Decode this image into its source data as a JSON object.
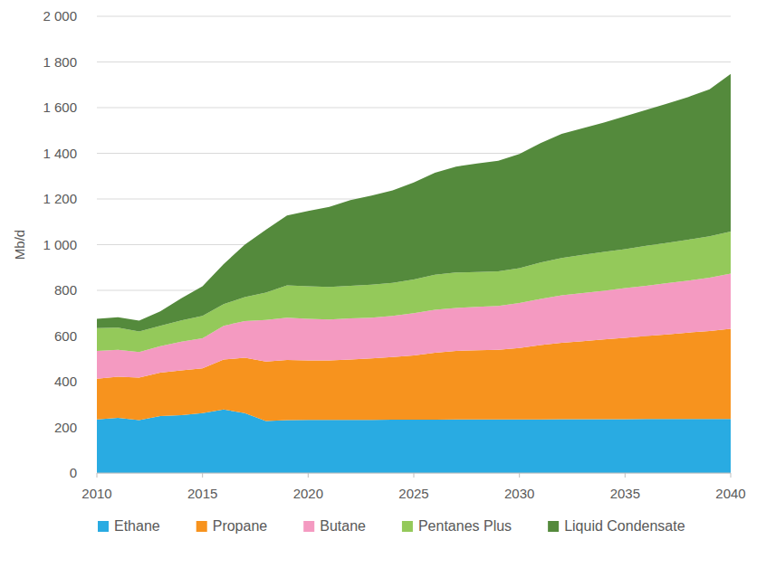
{
  "chart_data": {
    "type": "area",
    "stacked": true,
    "grid": true,
    "legend": "bottom",
    "y_label": "Mb/d",
    "x": [
      2010,
      2011,
      2012,
      2013,
      2014,
      2015,
      2016,
      2017,
      2018,
      2019,
      2020,
      2021,
      2022,
      2023,
      2024,
      2025,
      2026,
      2027,
      2028,
      2029,
      2030,
      2031,
      2032,
      2033,
      2034,
      2035,
      2036,
      2037,
      2038,
      2039,
      2040
    ],
    "xlim": [
      2010,
      2040
    ],
    "xticks": [
      2010,
      2015,
      2020,
      2025,
      2030,
      2035,
      2040
    ],
    "ylim": [
      0,
      2000
    ],
    "yticks": [
      0,
      200,
      400,
      600,
      800,
      {
        "value": 1000,
        "label": "1 000"
      },
      {
        "value": 1200,
        "label": "1 200"
      },
      {
        "value": 1400,
        "label": "1 400"
      },
      {
        "value": 1600,
        "label": "1 600"
      },
      {
        "value": 1800,
        "label": "1 800"
      },
      {
        "value": 2000,
        "label": "2 000"
      }
    ],
    "series": [
      {
        "name": "Ethane",
        "color": "#29abe2",
        "values": [
          235,
          242,
          232,
          250,
          253,
          262,
          278,
          262,
          228,
          232,
          233,
          233,
          233,
          233,
          234,
          234,
          234,
          235,
          235,
          235,
          235,
          235,
          236,
          236,
          236,
          236,
          237,
          237,
          237,
          237,
          237
        ]
      },
      {
        "name": "Propane",
        "color": "#f7931e",
        "values": [
          178,
          180,
          186,
          190,
          197,
          196,
          219,
          243,
          260,
          263,
          260,
          260,
          264,
          269,
          274,
          281,
          293,
          300,
          303,
          305,
          313,
          325,
          334,
          341,
          349,
          356,
          363,
          370,
          378,
          385,
          395
        ]
      },
      {
        "name": "Butane",
        "color": "#f49ac1",
        "values": [
          122,
          118,
          112,
          115,
          125,
          132,
          148,
          160,
          182,
          185,
          182,
          179,
          180,
          178,
          180,
          185,
          188,
          188,
          190,
          192,
          197,
          202,
          208,
          211,
          213,
          218,
          220,
          225,
          228,
          233,
          241
        ]
      },
      {
        "name": "Pentanes Plus",
        "color": "#94c95a",
        "values": [
          100,
          97,
          90,
          90,
          93,
          98,
          95,
          105,
          120,
          142,
          143,
          143,
          143,
          145,
          145,
          148,
          153,
          155,
          152,
          151,
          152,
          160,
          164,
          167,
          170,
          170,
          175,
          176,
          179,
          182,
          184
        ]
      },
      {
        "name": "Liquid Condensate",
        "color": "#548a3c",
        "values": [
          40,
          45,
          47,
          63,
          97,
          130,
          175,
          230,
          275,
          306,
          330,
          350,
          375,
          390,
          405,
          424,
          447,
          464,
          475,
          484,
          500,
          523,
          543,
          555,
          567,
          582,
          595,
          610,
          625,
          643,
          691
        ]
      }
    ]
  }
}
